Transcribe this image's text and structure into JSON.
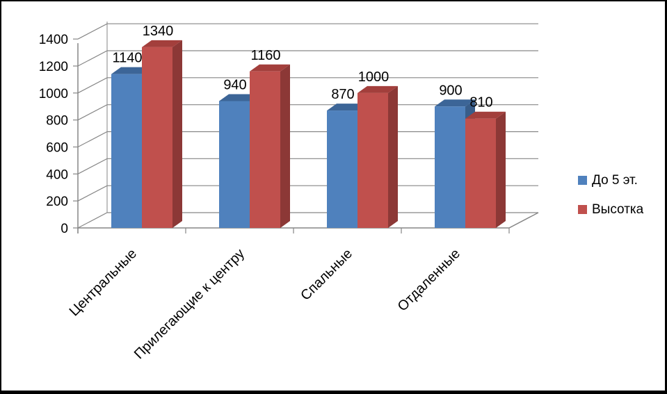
{
  "chart_data": {
    "type": "bar",
    "title": "",
    "xlabel": "",
    "ylabel": "",
    "ylim": [
      0,
      1400
    ],
    "ytick_step": 200,
    "grid": true,
    "legend_position": "right",
    "categories": [
      "Центральные",
      "Прилегающие к центру",
      "Спальные",
      "Отдаленные"
    ],
    "series": [
      {
        "name": "До 5 эт.",
        "color": "#4f81bd",
        "side_color": "#385d8a",
        "top_color": "#3c6597",
        "values": [
          1140,
          940,
          870,
          900
        ]
      },
      {
        "name": "Высотка",
        "color": "#c0504d",
        "side_color": "#8c3836",
        "top_color": "#a33f3c",
        "values": [
          1340,
          1160,
          1000,
          810
        ]
      }
    ]
  }
}
